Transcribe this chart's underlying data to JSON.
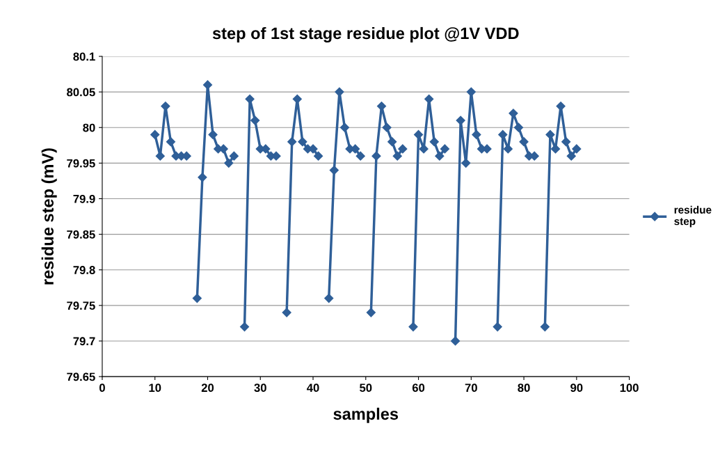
{
  "chart_data": {
    "type": "line",
    "title": "step of 1st stage residue plot @1V VDD",
    "xlabel": "samples",
    "ylabel": "residue step (mV)",
    "series": [
      {
        "name": "residue\nstep",
        "color": "#2f5f98",
        "x": [
          10,
          11,
          12,
          13,
          14,
          15,
          16,
          17,
          18,
          19,
          20,
          21,
          22,
          23,
          24,
          25,
          26,
          27,
          28,
          29,
          30,
          31,
          32,
          33,
          34,
          35,
          36,
          37,
          38,
          39,
          40,
          41,
          42,
          43,
          44,
          45,
          46,
          47,
          48,
          49,
          50,
          51,
          52,
          53,
          54,
          55,
          56,
          57,
          58,
          59,
          60,
          61,
          62,
          63,
          64,
          65,
          66,
          67,
          68,
          69,
          70,
          71,
          72,
          73,
          74,
          75,
          76,
          77,
          78,
          79,
          80,
          81,
          82,
          83,
          84,
          85,
          86,
          87,
          88,
          89,
          90
        ],
        "values": [
          79.99,
          79.96,
          80.03,
          79.98,
          79.96,
          79.96,
          79.96,
          null,
          79.76,
          79.93,
          80.06,
          79.99,
          79.97,
          79.97,
          79.95,
          79.96,
          null,
          79.72,
          80.04,
          80.01,
          79.97,
          79.97,
          79.96,
          79.96,
          null,
          79.74,
          79.98,
          80.04,
          79.98,
          79.97,
          79.97,
          79.96,
          null,
          79.76,
          79.94,
          80.05,
          80.0,
          79.97,
          79.97,
          79.96,
          null,
          79.74,
          79.96,
          80.03,
          80.0,
          79.98,
          79.96,
          79.97,
          null,
          79.72,
          79.99,
          79.97,
          80.04,
          79.98,
          79.96,
          79.97,
          null,
          79.7,
          80.01,
          79.95,
          80.05,
          79.99,
          79.97,
          79.97,
          null,
          79.72,
          79.99,
          79.97,
          80.02,
          80.0,
          79.98,
          79.96,
          79.96,
          null,
          79.72,
          79.99,
          79.97,
          80.03,
          79.98,
          79.96,
          79.97
        ]
      }
    ],
    "xlim": [
      0,
      100
    ],
    "xticks": [
      0,
      10,
      20,
      30,
      40,
      50,
      60,
      70,
      80,
      90,
      100
    ],
    "ylim": [
      79.65,
      80.1
    ],
    "yticks": [
      79.65,
      79.7,
      79.75,
      79.8,
      79.85,
      79.9,
      79.95,
      80,
      80.05,
      80.1
    ],
    "grid": "y",
    "legend": "right",
    "marker": "diamond",
    "line_style": "solid"
  }
}
